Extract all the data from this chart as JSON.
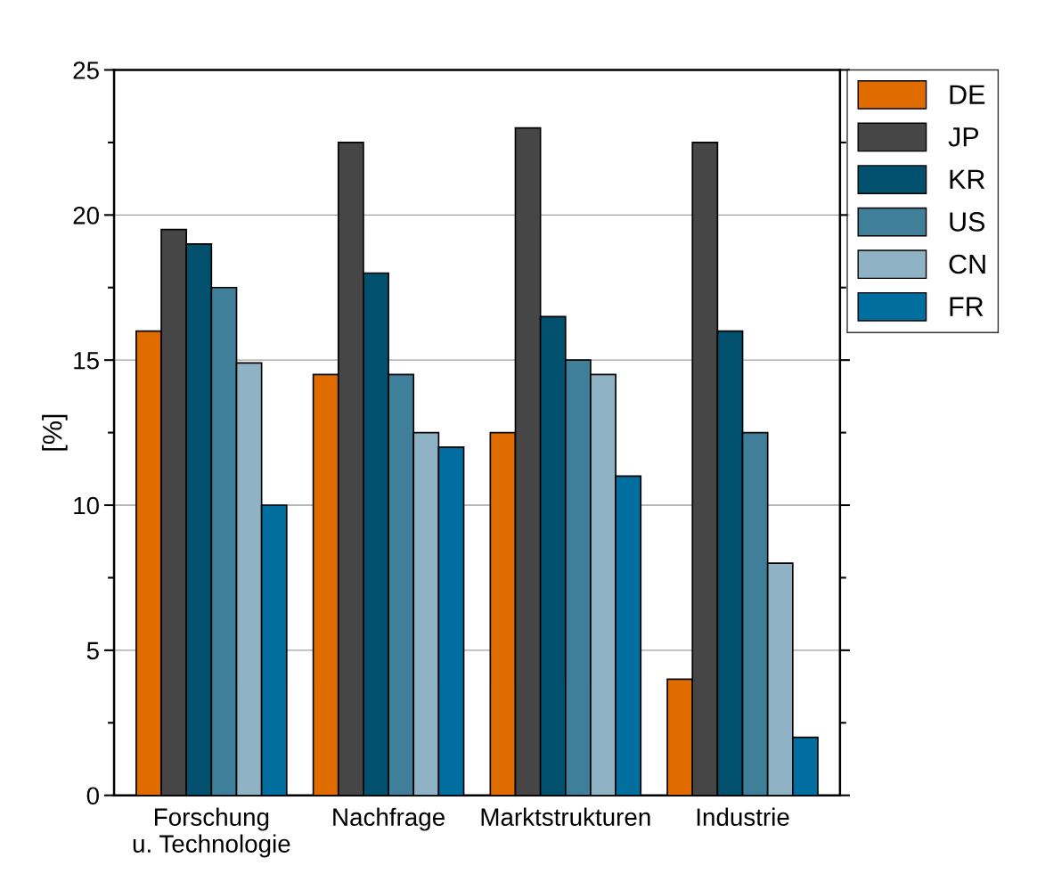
{
  "chart_data": {
    "type": "bar",
    "ylabel": "[%]",
    "categories": [
      "Forschung\nu. Technologie",
      "Nachfrage",
      "Marktstrukturen",
      "Industrie"
    ],
    "series": [
      {
        "name": "DE",
        "color": "#e06c00",
        "values": [
          16,
          14.5,
          12.5,
          4
        ]
      },
      {
        "name": "JP",
        "color": "#464646",
        "values": [
          19.5,
          22.5,
          23,
          22.5
        ]
      },
      {
        "name": "KR",
        "color": "#00506e",
        "values": [
          19,
          18,
          16.5,
          16
        ]
      },
      {
        "name": "US",
        "color": "#3f7f99",
        "values": [
          17.5,
          14.5,
          15,
          12.5
        ]
      },
      {
        "name": "CN",
        "color": "#8fb2c4",
        "values": [
          14.9,
          12.5,
          14.5,
          8
        ]
      },
      {
        "name": "FR",
        "color": "#006e9e",
        "values": [
          10,
          12,
          11,
          2
        ]
      }
    ],
    "ylim": [
      0,
      25
    ],
    "yticks": [
      0,
      5,
      10,
      15,
      20,
      25
    ],
    "grid": "y",
    "legend": "top right"
  }
}
